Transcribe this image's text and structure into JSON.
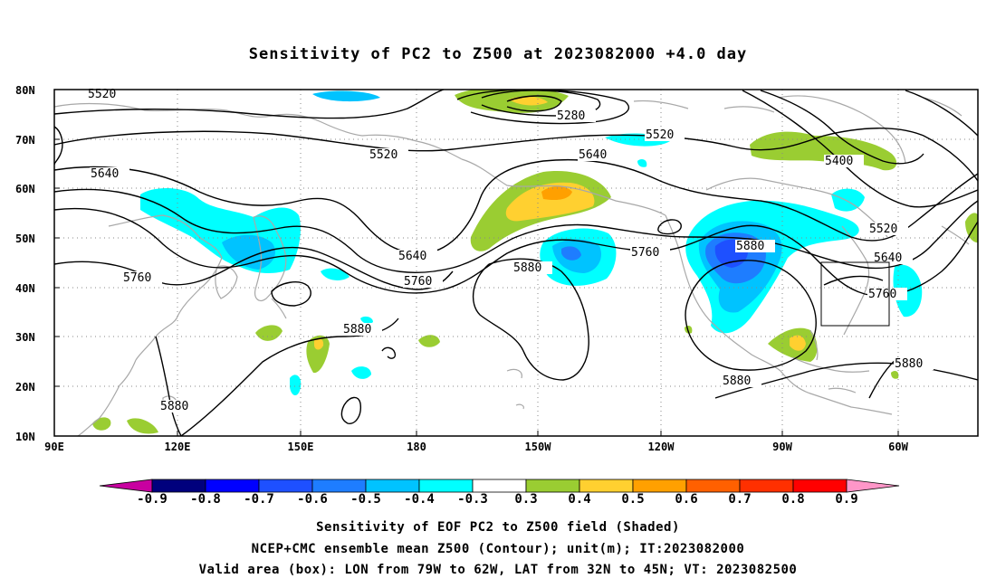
{
  "title": "Sensitivity of PC2 to Z500 at 2023082000 +4.0 day",
  "lat_labels": [
    "80N",
    "70N",
    "60N",
    "50N",
    "40N",
    "30N",
    "20N",
    "10N"
  ],
  "lon_labels": [
    "90E",
    "120E",
    "150E",
    "180",
    "150W",
    "120W",
    "90W",
    "60W"
  ],
  "contour_labels": [
    "5520",
    "5280",
    "5520",
    "5520",
    "5640",
    "5640",
    "5640",
    "5400",
    "5520",
    "5760",
    "5760",
    "5880",
    "5760",
    "5880",
    "5640",
    "5760",
    "5880",
    "5880",
    "5880",
    "5880"
  ],
  "colorbar": {
    "labels": [
      "-0.9",
      "-0.8",
      "-0.7",
      "-0.6",
      "-0.5",
      "-0.4",
      "-0.3",
      "0.3",
      "0.4",
      "0.5",
      "0.6",
      "0.7",
      "0.8",
      "0.9"
    ],
    "colors": [
      "#00007d",
      "#0000ff",
      "#1e50ff",
      "#1e7dff",
      "#00c3ff",
      "#00ffff",
      "#ffffff",
      "#9acd32",
      "#ffd030",
      "#ffa000",
      "#ff6000",
      "#ff3000",
      "#ff0000"
    ],
    "low_color": "#c800a0",
    "high_color": "#ff96c8"
  },
  "captions": [
    "Sensitivity of EOF PC2 to Z500 field (Shaded)",
    "NCEP+CMC ensemble mean Z500 (Contour); unit(m); IT:2023082000",
    "Valid area (box): LON from 79W to 62W, LAT from 32N to 45N; VT: 2023082500"
  ]
}
